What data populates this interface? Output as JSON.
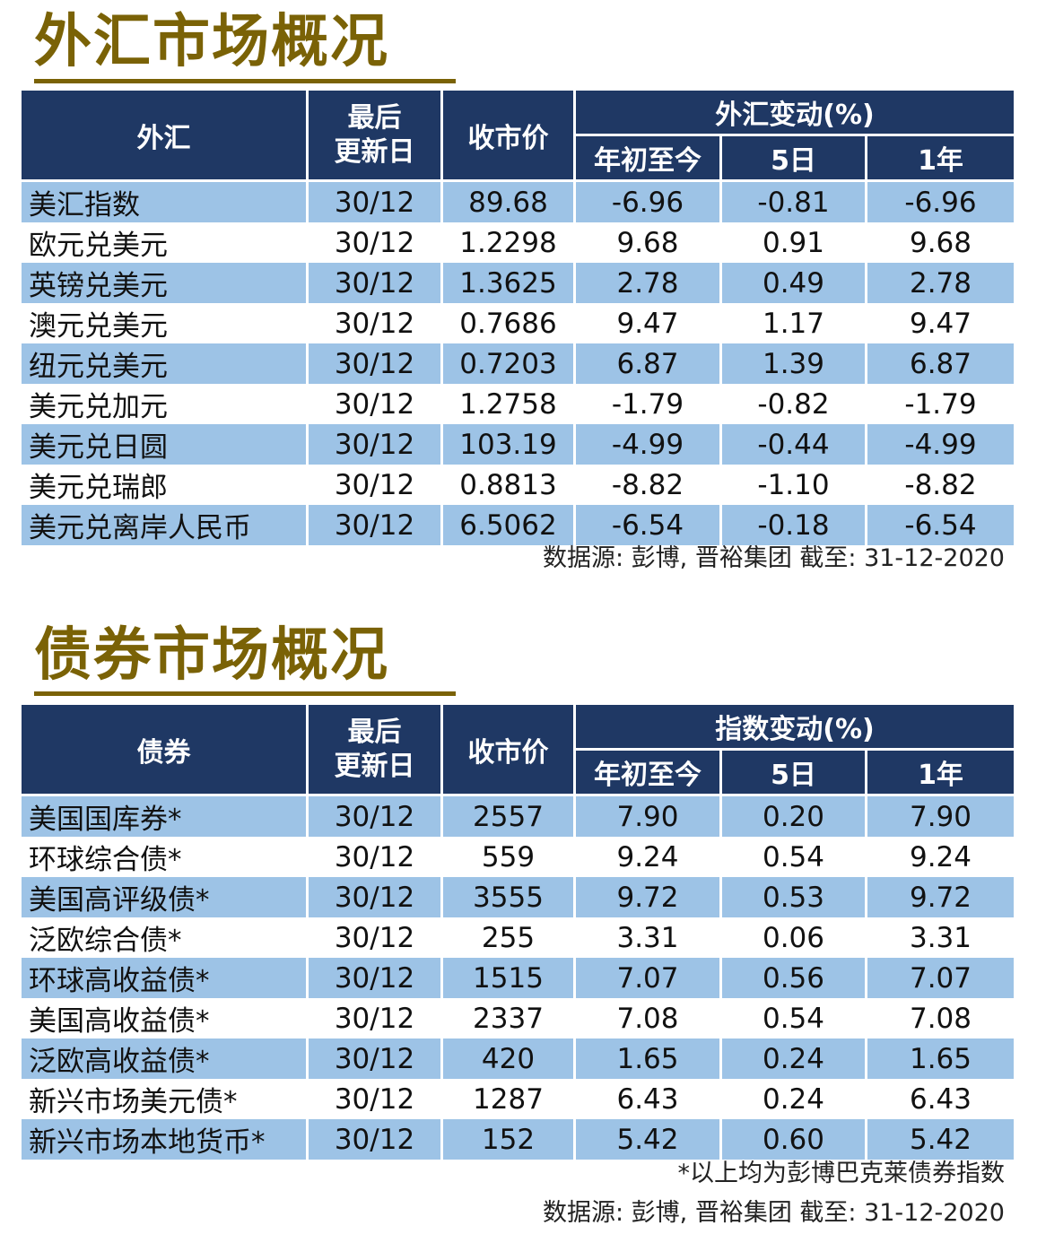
{
  "fx": {
    "title": "外汇市场概况",
    "headers": {
      "name": "外汇",
      "date_line1": "最后",
      "date_line2": "更新日",
      "price": "收市价",
      "group": "外汇变动(%)",
      "ytd": "年初至今",
      "d5": "5日",
      "y1": "1年"
    },
    "rows": [
      {
        "name": "美汇指数",
        "date": "30/12",
        "price": "89.68",
        "ytd": "-6.96",
        "d5": "-0.81",
        "y1": "-6.96"
      },
      {
        "name": "欧元兑美元",
        "date": "30/12",
        "price": "1.2298",
        "ytd": "9.68",
        "d5": "0.91",
        "y1": "9.68"
      },
      {
        "name": "英镑兑美元",
        "date": "30/12",
        "price": "1.3625",
        "ytd": "2.78",
        "d5": "0.49",
        "y1": "2.78"
      },
      {
        "name": "澳元兑美元",
        "date": "30/12",
        "price": "0.7686",
        "ytd": "9.47",
        "d5": "1.17",
        "y1": "9.47"
      },
      {
        "name": "纽元兑美元",
        "date": "30/12",
        "price": "0.7203",
        "ytd": "6.87",
        "d5": "1.39",
        "y1": "6.87"
      },
      {
        "name": "美元兑加元",
        "date": "30/12",
        "price": "1.2758",
        "ytd": "-1.79",
        "d5": "-0.82",
        "y1": "-1.79"
      },
      {
        "name": "美元兑日圆",
        "date": "30/12",
        "price": "103.19",
        "ytd": "-4.99",
        "d5": "-0.44",
        "y1": "-4.99"
      },
      {
        "name": "美元兑瑞郎",
        "date": "30/12",
        "price": "0.8813",
        "ytd": "-8.82",
        "d5": "-1.10",
        "y1": "-8.82"
      },
      {
        "name": "美元兑离岸人民币",
        "date": "30/12",
        "price": "6.5062",
        "ytd": "-6.54",
        "d5": "-0.18",
        "y1": "-6.54"
      }
    ],
    "source": "数据源: 彭博, 晋裕集团 截至:  31-12-2020"
  },
  "bond": {
    "title": "债券市场概况",
    "headers": {
      "name": "债券",
      "date_line1": "最后",
      "date_line2": "更新日",
      "price": "收市价",
      "group": "指数变动(%)",
      "ytd": "年初至今",
      "d5": "5日",
      "y1": "1年"
    },
    "rows": [
      {
        "name": "美国国库券*",
        "date": "30/12",
        "price": "2557",
        "ytd": "7.90",
        "d5": "0.20",
        "y1": "7.90"
      },
      {
        "name": "环球综合债*",
        "date": "30/12",
        "price": "559",
        "ytd": "9.24",
        "d5": "0.54",
        "y1": "9.24"
      },
      {
        "name": "美国高评级债*",
        "date": "30/12",
        "price": "3555",
        "ytd": "9.72",
        "d5": "0.53",
        "y1": "9.72"
      },
      {
        "name": "泛欧综合债*",
        "date": "30/12",
        "price": "255",
        "ytd": "3.31",
        "d5": "0.06",
        "y1": "3.31"
      },
      {
        "name": "环球高收益债*",
        "date": "30/12",
        "price": "1515",
        "ytd": "7.07",
        "d5": "0.56",
        "y1": "7.07"
      },
      {
        "name": "美国高收益债*",
        "date": "30/12",
        "price": "2337",
        "ytd": "7.08",
        "d5": "0.54",
        "y1": "7.08"
      },
      {
        "name": "泛欧高收益债*",
        "date": "30/12",
        "price": "420",
        "ytd": "1.65",
        "d5": "0.24",
        "y1": "1.65"
      },
      {
        "name": "新兴市场美元债*",
        "date": "30/12",
        "price": "1287",
        "ytd": "6.43",
        "d5": "0.24",
        "y1": "6.43"
      },
      {
        "name": "新兴市场本地货币*",
        "date": "30/12",
        "price": "152",
        "ytd": "5.42",
        "d5": "0.60",
        "y1": "5.42"
      }
    ],
    "footnote": "*以上均为彭博巴克莱债券指数",
    "source": "数据源: 彭博, 晋裕集团 截至:  31-12-2020"
  }
}
